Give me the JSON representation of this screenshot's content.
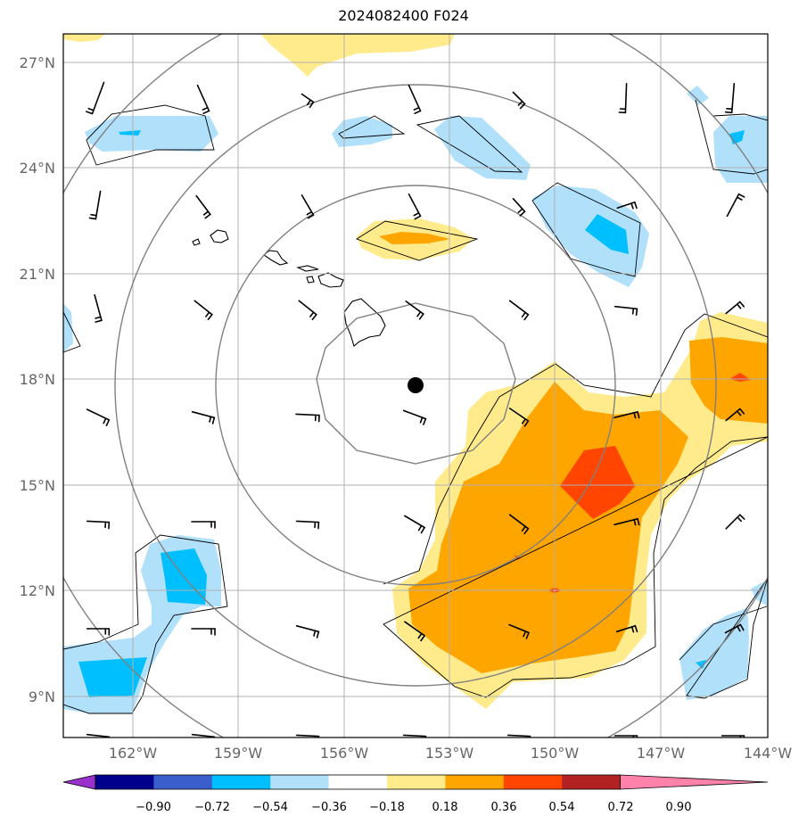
{
  "title": "2024082400 F024",
  "map": {
    "lat_ticks": [
      "27°N",
      "24°N",
      "21°N",
      "18°N",
      "15°N",
      "12°N",
      "9°N"
    ],
    "lon_ticks": [
      "162°W",
      "159°W",
      "156°W",
      "153°W",
      "150°W",
      "147°W",
      "144°W"
    ],
    "center_marker": "storm-center-dot"
  },
  "colorbar": {
    "labels": [
      "−0.90",
      "−0.72",
      "−0.54",
      "−0.36",
      "−0.18",
      "0.18",
      "0.36",
      "0.54",
      "0.72",
      "0.90"
    ],
    "colors": [
      "#9932cc",
      "#00008b",
      "#3a5fcd",
      "#00bfff",
      "#b0e0fa",
      "#ffffff",
      "#ffeb8c",
      "#ffa500",
      "#ff4500",
      "#b22222",
      "#ff82ab"
    ]
  },
  "colors": {
    "light_blue": "#b0e0fa",
    "blue": "#00bfff",
    "light_yellow": "#ffeb8c",
    "orange": "#ffa500",
    "red_orange": "#ff4500",
    "gridline": "#b0b0b0",
    "ring": "#808080"
  }
}
